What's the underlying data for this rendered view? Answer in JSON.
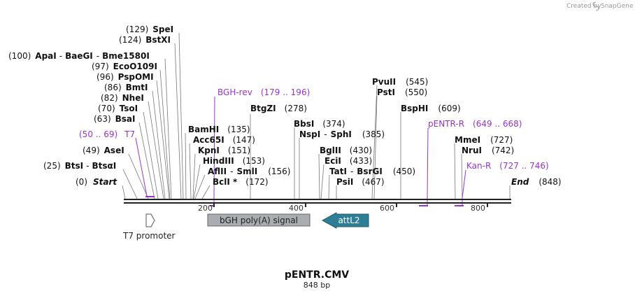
{
  "credit": {
    "created_by": "Created by",
    "brand": "SnapGene"
  },
  "title": {
    "name": "pENTR.CMV",
    "length": "848 bp"
  },
  "axis": {
    "ticks": [
      "200",
      "400",
      "600",
      "800"
    ]
  },
  "sites": [
    {
      "pos": "(129)",
      "name": "SpeI"
    },
    {
      "pos": "(124)",
      "name": "BstXI"
    },
    {
      "pos": "(100)",
      "name": "ApaI",
      "name2": "BaeGI",
      "name3": "Bme1580I"
    },
    {
      "pos": "(97)",
      "name": "EcoO109I"
    },
    {
      "pos": "(96)",
      "name": "PspOMI"
    },
    {
      "pos": "(86)",
      "name": "BmtI"
    },
    {
      "pos": "(82)",
      "name": "NheI"
    },
    {
      "pos": "(70)",
      "name": "TsoI"
    },
    {
      "pos": "(63)",
      "name": "BsaI"
    },
    {
      "pos": "(49)",
      "name": "AseI"
    },
    {
      "pos": "(25)",
      "name": "BtsI",
      "name2": "BtsαI"
    },
    {
      "pos": "(0)",
      "name": "Start"
    },
    {
      "pos": "(135)",
      "name": "BamHI"
    },
    {
      "pos": "(147)",
      "name": "Acc65I"
    },
    {
      "pos": "(151)",
      "name": "KpnI"
    },
    {
      "pos": "(153)",
      "name": "HindIII"
    },
    {
      "pos": "(156)",
      "name": "AflII",
      "name2": "SmlI"
    },
    {
      "pos": "(172)",
      "name": "BclI *"
    },
    {
      "pos": "(278)",
      "name": "BtgZI"
    },
    {
      "pos": "(374)",
      "name": "BbsI"
    },
    {
      "pos": "(385)",
      "name": "NspI",
      "name2": "SphI"
    },
    {
      "pos": "(430)",
      "name": "BglII"
    },
    {
      "pos": "(433)",
      "name": "EciI"
    },
    {
      "pos": "(450)",
      "name": "TatI",
      "name2": "BsrGI"
    },
    {
      "pos": "(467)",
      "name": "PsiI"
    },
    {
      "pos": "(545)",
      "name": "PvuII"
    },
    {
      "pos": "(550)",
      "name": "PstI"
    },
    {
      "pos": "(609)",
      "name": "BspHI"
    },
    {
      "pos": "(727)",
      "name": "MmeI"
    },
    {
      "pos": "(742)",
      "name": "NruI"
    },
    {
      "pos": "(848)",
      "name": "End"
    }
  ],
  "primers": [
    {
      "name": "BGH-rev",
      "range": "(179 .. 196)"
    },
    {
      "name": "T7",
      "range": "(50 .. 69)"
    },
    {
      "name": "pENTR-R",
      "range": "(649 .. 668)"
    },
    {
      "name": "Kan-R",
      "range": "(727 .. 746)"
    }
  ],
  "features": [
    {
      "name": "T7 promoter"
    },
    {
      "name": "bGH poly(A) signal"
    },
    {
      "name": "attL2"
    }
  ],
  "colors": {
    "primer": "#9933cc",
    "bgh": "#a9acb0",
    "attl2": "#2e7f96",
    "line": "#333333"
  }
}
